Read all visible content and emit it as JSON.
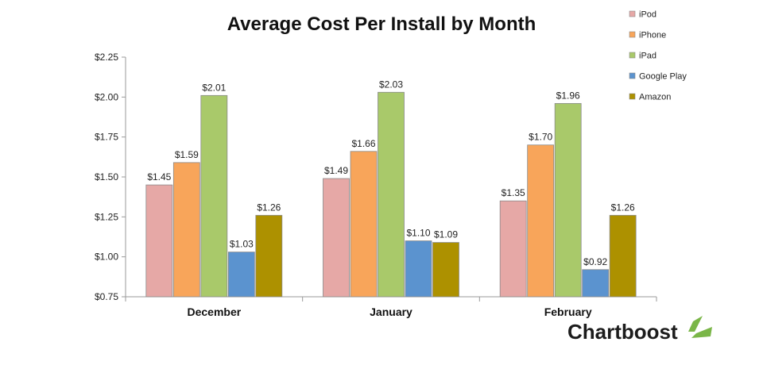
{
  "chart_data": {
    "type": "bar",
    "title": "Average Cost Per Install by Month",
    "xlabel": "",
    "ylabel": "",
    "categories": [
      "December",
      "January",
      "February"
    ],
    "series": [
      {
        "name": "iPod",
        "color": "#e6a8a6",
        "values": [
          1.45,
          1.49,
          1.35
        ]
      },
      {
        "name": "iPhone",
        "color": "#f8a55a",
        "values": [
          1.59,
          1.66,
          1.7
        ]
      },
      {
        "name": "iPad",
        "color": "#a9c96a",
        "values": [
          2.01,
          2.03,
          1.96
        ]
      },
      {
        "name": "Google Play",
        "color": "#5b93cf",
        "values": [
          1.03,
          1.1,
          0.92
        ]
      },
      {
        "name": "Amazon",
        "color": "#ad9100",
        "values": [
          1.26,
          1.09,
          1.26
        ]
      }
    ],
    "data_labels": [
      [
        "$1.45",
        "$1.59",
        "$2.01",
        "$1.03",
        "$1.26"
      ],
      [
        "$1.49",
        "$1.66",
        "$2.03",
        "$1.10",
        "$1.09"
      ],
      [
        "$1.35",
        "$1.70",
        "$1.96",
        "$0.92",
        "$1.26"
      ]
    ],
    "ylim": [
      0.75,
      2.25
    ],
    "yticks": [
      2.25,
      2.0,
      1.75,
      1.5,
      1.25,
      1.0,
      0.75
    ],
    "ytick_labels": [
      "$2.25",
      "$2.00",
      "$1.75",
      "$1.50",
      "$1.25",
      "$1.00",
      "$0.75"
    ],
    "grid": false,
    "legend_position": "top-right"
  },
  "brand": {
    "name": "Chartboost",
    "color": "#7ab648"
  }
}
